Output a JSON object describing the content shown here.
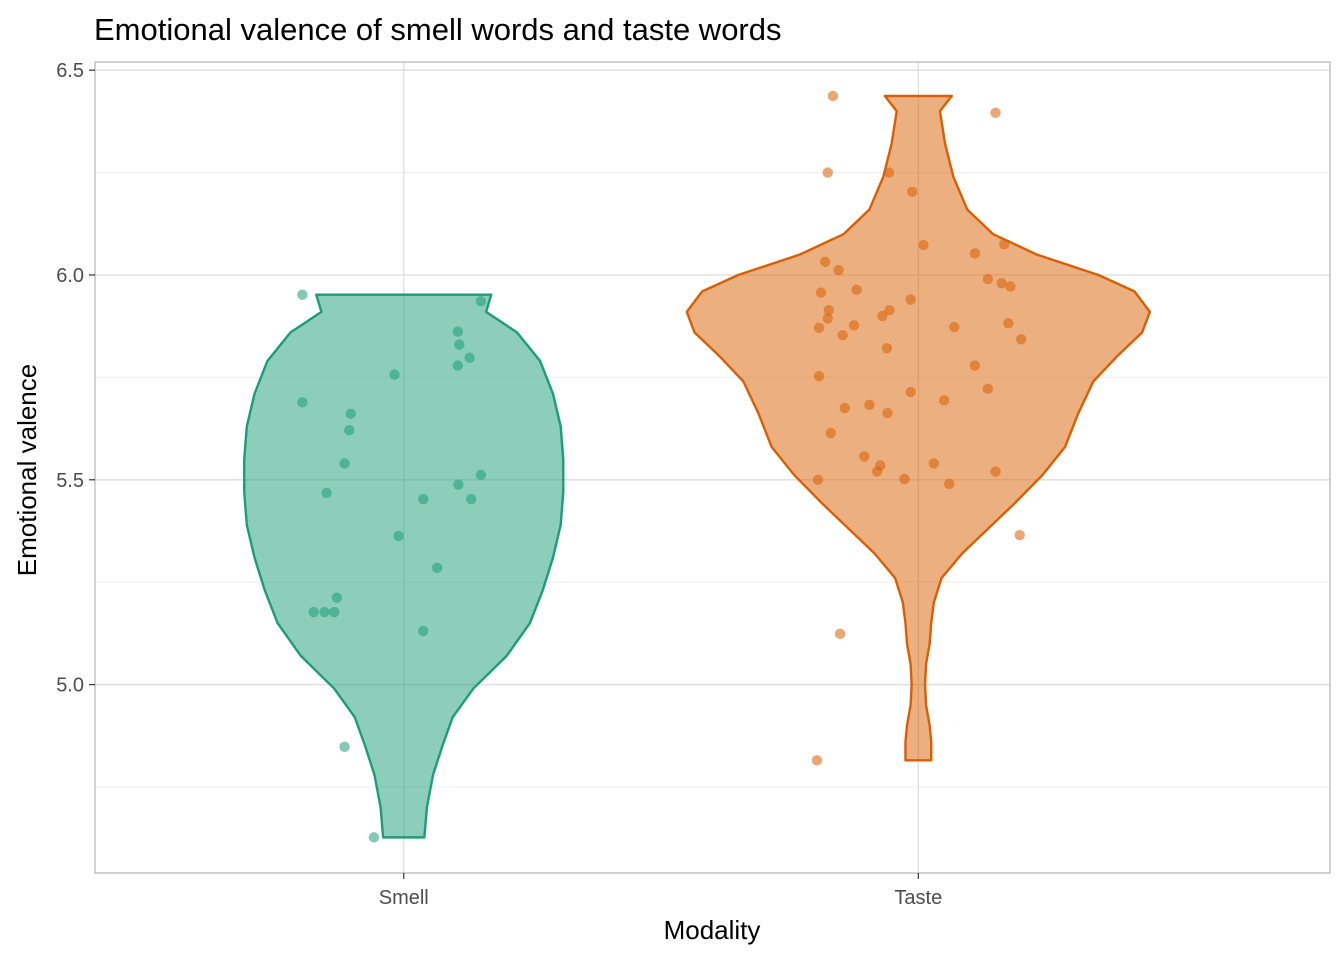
{
  "chart_data": {
    "type": "violin",
    "title": "Emotional valence of smell words and taste words",
    "xlabel": "Modality",
    "ylabel": "Emotional valence",
    "ylim": [
      4.54,
      6.52
    ],
    "yticks": [
      "5.0",
      "5.5",
      "6.0",
      "6.5"
    ],
    "categories": [
      "Smell",
      "Taste"
    ],
    "grid": true,
    "legend": "none",
    "series": [
      {
        "category": "Smell",
        "color": "#1b9e77",
        "points": [
          {
            "x": -0.197,
            "y": 5.952
          },
          {
            "x": 0.15,
            "y": 5.936
          },
          {
            "x": 0.105,
            "y": 5.862
          },
          {
            "x": 0.108,
            "y": 5.83
          },
          {
            "x": 0.128,
            "y": 5.798
          },
          {
            "x": 0.105,
            "y": 5.779
          },
          {
            "x": -0.018,
            "y": 5.757
          },
          {
            "x": -0.197,
            "y": 5.689
          },
          {
            "x": -0.103,
            "y": 5.661
          },
          {
            "x": -0.106,
            "y": 5.621
          },
          {
            "x": -0.115,
            "y": 5.54
          },
          {
            "x": 0.15,
            "y": 5.512
          },
          {
            "x": 0.106,
            "y": 5.488
          },
          {
            "x": -0.15,
            "y": 5.468
          },
          {
            "x": 0.038,
            "y": 5.453
          },
          {
            "x": 0.131,
            "y": 5.453
          },
          {
            "x": -0.01,
            "y": 5.363
          },
          {
            "x": 0.065,
            "y": 5.285
          },
          {
            "x": -0.13,
            "y": 5.212
          },
          {
            "x": -0.175,
            "y": 5.177
          },
          {
            "x": -0.154,
            "y": 5.177
          },
          {
            "x": -0.135,
            "y": 5.177
          },
          {
            "x": 0.038,
            "y": 5.131
          },
          {
            "x": -0.115,
            "y": 4.848
          },
          {
            "x": -0.058,
            "y": 4.627
          }
        ],
        "violin": [
          [
            4.627,
            0.04
          ],
          [
            4.7,
            0.045
          ],
          [
            4.78,
            0.057
          ],
          [
            4.85,
            0.075
          ],
          [
            4.92,
            0.095
          ],
          [
            4.99,
            0.135
          ],
          [
            5.07,
            0.2
          ],
          [
            5.15,
            0.245
          ],
          [
            5.23,
            0.27
          ],
          [
            5.31,
            0.29
          ],
          [
            5.39,
            0.305
          ],
          [
            5.47,
            0.31
          ],
          [
            5.55,
            0.31
          ],
          [
            5.63,
            0.305
          ],
          [
            5.71,
            0.29
          ],
          [
            5.79,
            0.265
          ],
          [
            5.86,
            0.22
          ],
          [
            5.91,
            0.16
          ],
          [
            5.952,
            0.17
          ]
        ]
      },
      {
        "category": "Taste",
        "color": "#d95f02",
        "points": [
          {
            "x": -0.166,
            "y": 6.437
          },
          {
            "x": 0.15,
            "y": 6.396
          },
          {
            "x": -0.176,
            "y": 6.25
          },
          {
            "x": -0.057,
            "y": 6.25
          },
          {
            "x": -0.012,
            "y": 6.203
          },
          {
            "x": 0.01,
            "y": 6.073
          },
          {
            "x": 0.167,
            "y": 6.075
          },
          {
            "x": 0.11,
            "y": 6.053
          },
          {
            "x": -0.181,
            "y": 6.032
          },
          {
            "x": -0.155,
            "y": 6.012
          },
          {
            "x": 0.135,
            "y": 5.99
          },
          {
            "x": 0.162,
            "y": 5.98
          },
          {
            "x": 0.179,
            "y": 5.972
          },
          {
            "x": -0.12,
            "y": 5.964
          },
          {
            "x": -0.189,
            "y": 5.957
          },
          {
            "x": -0.015,
            "y": 5.94
          },
          {
            "x": -0.174,
            "y": 5.914
          },
          {
            "x": -0.056,
            "y": 5.914
          },
          {
            "x": -0.07,
            "y": 5.9
          },
          {
            "x": -0.176,
            "y": 5.894
          },
          {
            "x": 0.175,
            "y": 5.882
          },
          {
            "x": -0.125,
            "y": 5.877
          },
          {
            "x": 0.07,
            "y": 5.873
          },
          {
            "x": -0.193,
            "y": 5.871
          },
          {
            "x": -0.147,
            "y": 5.853
          },
          {
            "x": 0.2,
            "y": 5.843
          },
          {
            "x": -0.061,
            "y": 5.821
          },
          {
            "x": 0.11,
            "y": 5.779
          },
          {
            "x": -0.193,
            "y": 5.753
          },
          {
            "x": 0.135,
            "y": 5.722
          },
          {
            "x": -0.015,
            "y": 5.714
          },
          {
            "x": 0.05,
            "y": 5.694
          },
          {
            "x": -0.095,
            "y": 5.683
          },
          {
            "x": -0.143,
            "y": 5.675
          },
          {
            "x": -0.06,
            "y": 5.663
          },
          {
            "x": -0.17,
            "y": 5.614
          },
          {
            "x": -0.105,
            "y": 5.557
          },
          {
            "x": 0.03,
            "y": 5.54
          },
          {
            "x": -0.074,
            "y": 5.535
          },
          {
            "x": -0.08,
            "y": 5.52
          },
          {
            "x": 0.15,
            "y": 5.52
          },
          {
            "x": -0.195,
            "y": 5.5
          },
          {
            "x": -0.027,
            "y": 5.502
          },
          {
            "x": 0.06,
            "y": 5.49
          },
          {
            "x": 0.197,
            "y": 5.365
          },
          {
            "x": -0.152,
            "y": 5.124
          },
          {
            "x": -0.197,
            "y": 4.815
          }
        ],
        "violin": [
          [
            4.815,
            0.025
          ],
          [
            4.86,
            0.025
          ],
          [
            4.9,
            0.022
          ],
          [
            4.95,
            0.015
          ],
          [
            5.0,
            0.013
          ],
          [
            5.05,
            0.015
          ],
          [
            5.1,
            0.022
          ],
          [
            5.15,
            0.025
          ],
          [
            5.2,
            0.03
          ],
          [
            5.26,
            0.045
          ],
          [
            5.32,
            0.085
          ],
          [
            5.38,
            0.135
          ],
          [
            5.44,
            0.185
          ],
          [
            5.51,
            0.24
          ],
          [
            5.58,
            0.285
          ],
          [
            5.66,
            0.31
          ],
          [
            5.74,
            0.34
          ],
          [
            5.8,
            0.385
          ],
          [
            5.86,
            0.435
          ],
          [
            5.91,
            0.45
          ],
          [
            5.96,
            0.42
          ],
          [
            6.0,
            0.35
          ],
          [
            6.05,
            0.23
          ],
          [
            6.1,
            0.145
          ],
          [
            6.16,
            0.095
          ],
          [
            6.24,
            0.068
          ],
          [
            6.32,
            0.052
          ],
          [
            6.4,
            0.042
          ],
          [
            6.437,
            0.065
          ]
        ]
      }
    ]
  }
}
